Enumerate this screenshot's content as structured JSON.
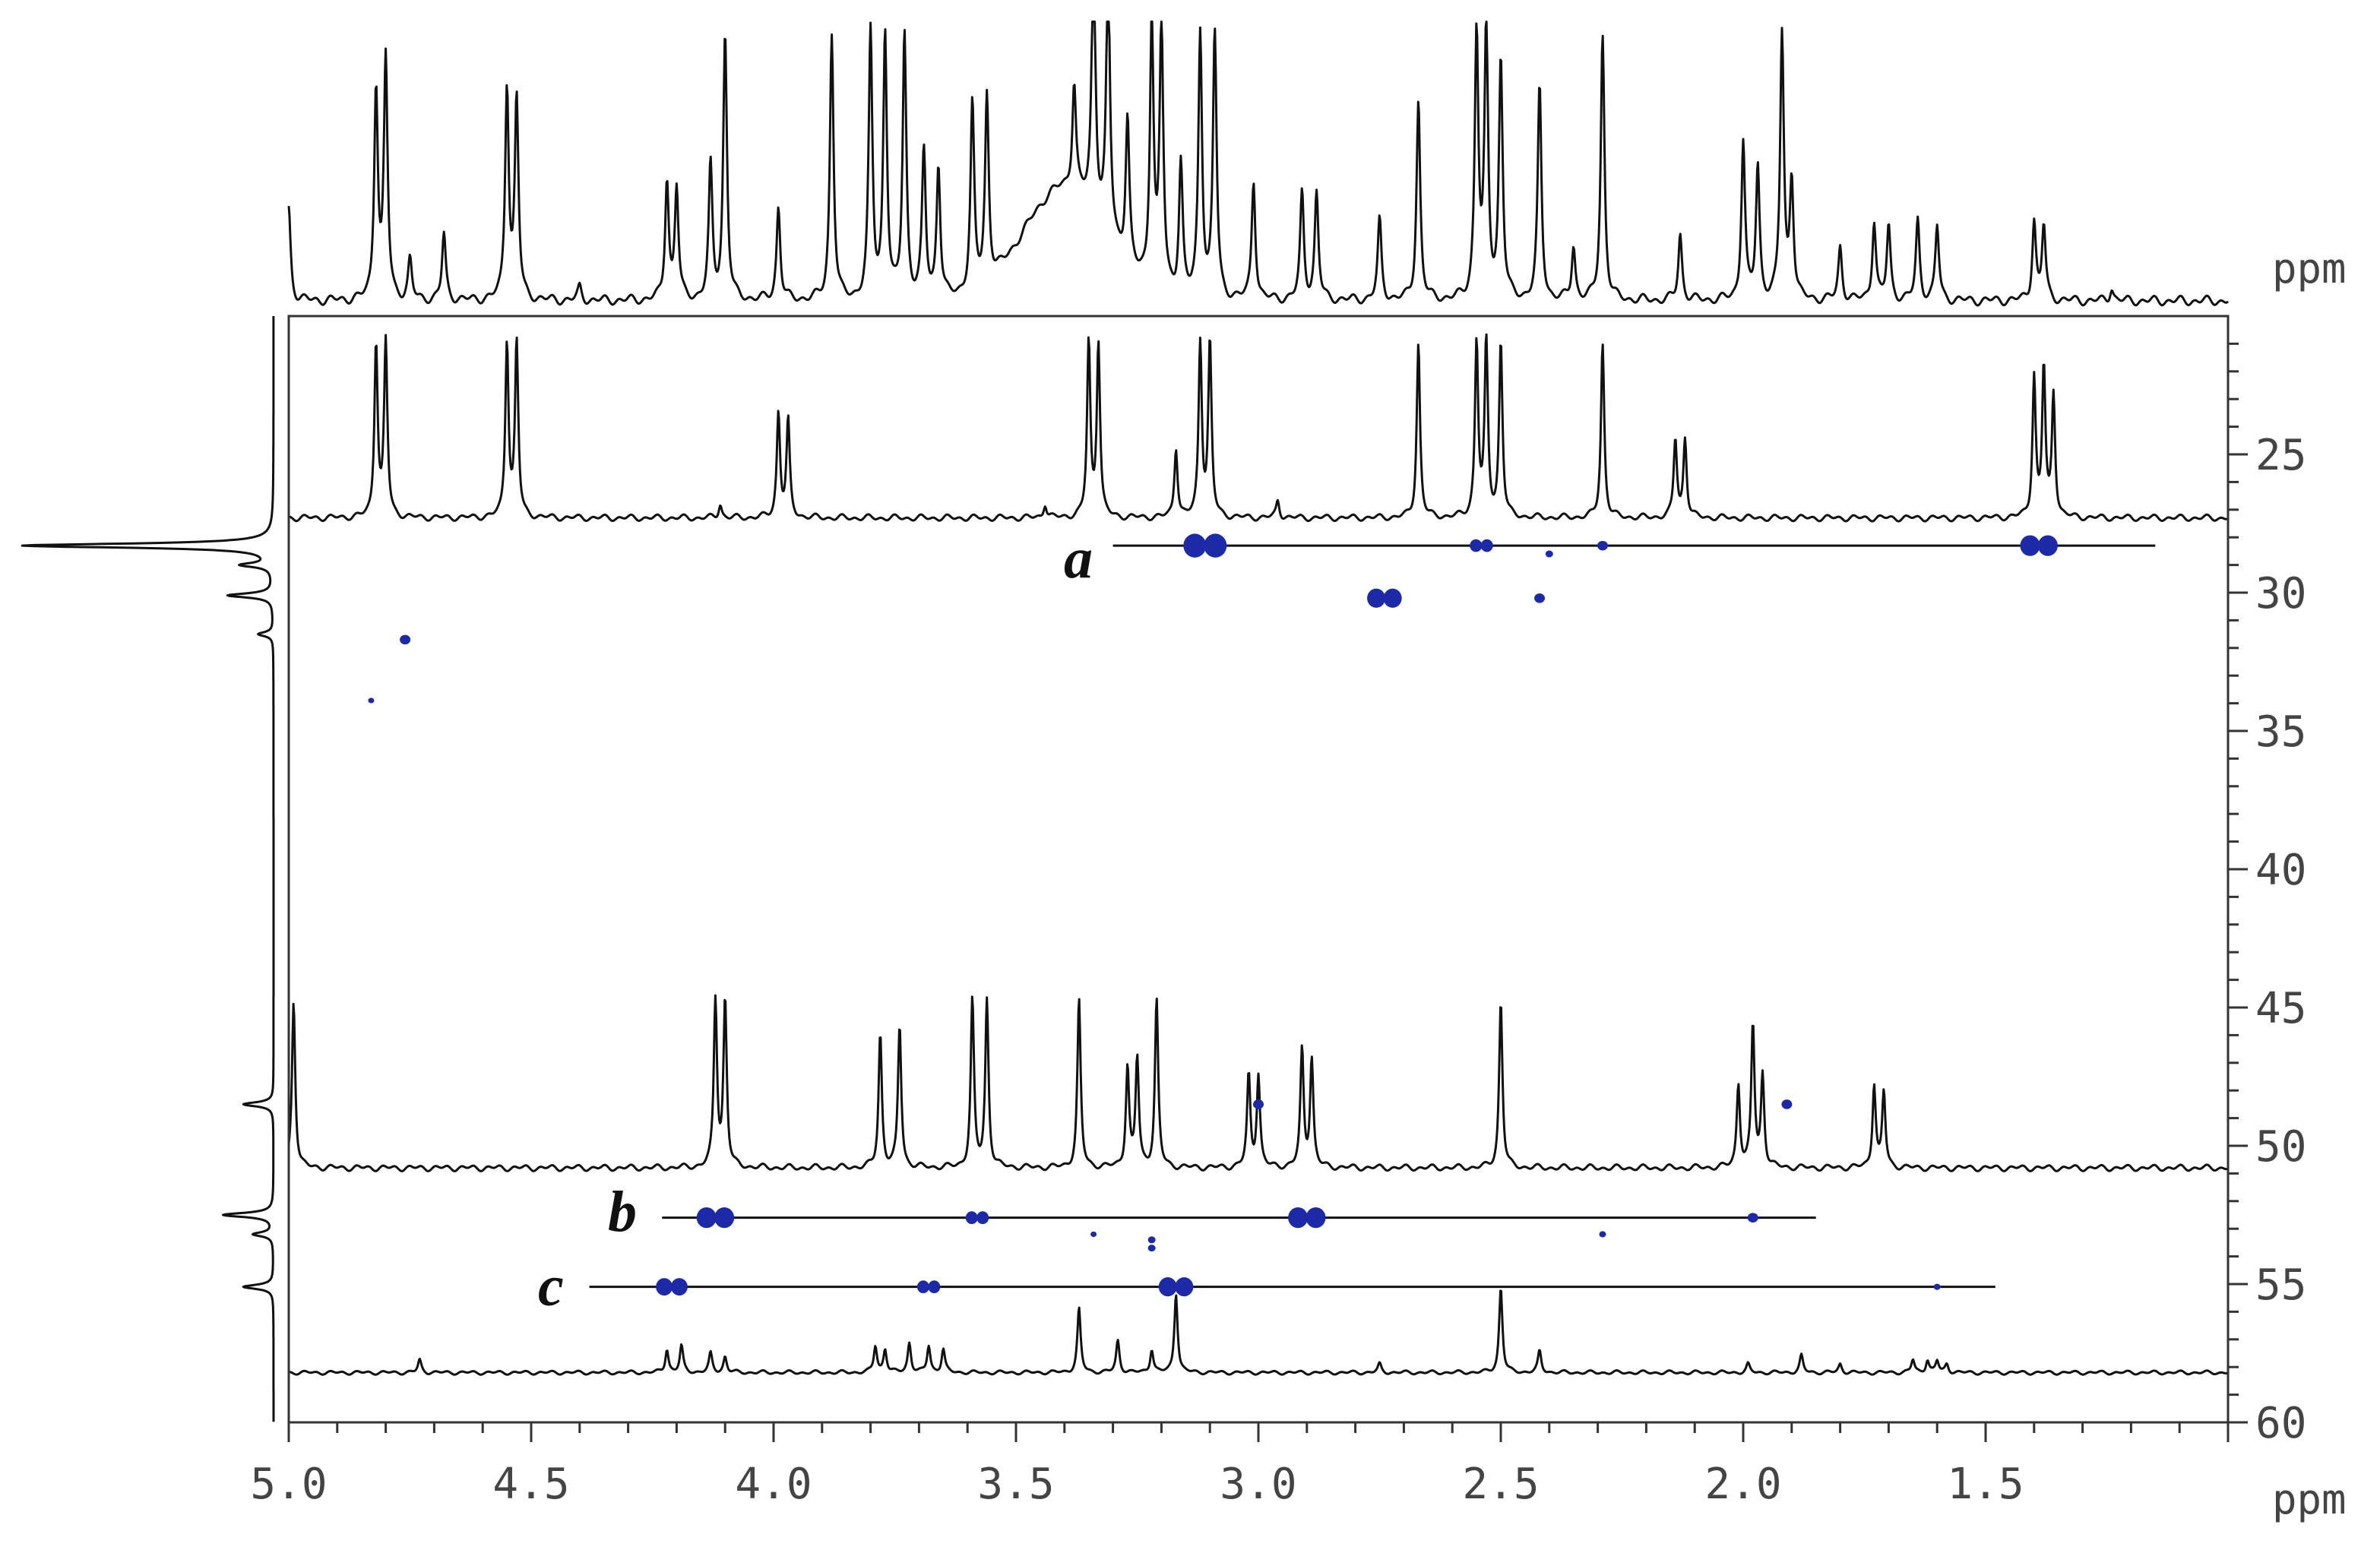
{
  "chart_data": {
    "type": "heatmap",
    "x_axis": {
      "unit": "ppm",
      "range": [
        5.0,
        1.0
      ],
      "tick_labels": [
        "5.0",
        "4.5",
        "4.0",
        "3.5",
        "3.0",
        "2.5",
        "2.0",
        "1.5"
      ]
    },
    "y_axis": {
      "unit": "ppm",
      "range": [
        20,
        60
      ],
      "tick_labels": [
        "25",
        "30",
        "35",
        "40",
        "45",
        "50",
        "55",
        "60"
      ]
    },
    "top_projection": {
      "peaks": [
        {
          "x": 5.0,
          "h": 0.35
        },
        {
          "x": 4.82,
          "h": 0.8
        },
        {
          "x": 4.8,
          "h": 0.9
        },
        {
          "x": 4.75,
          "h": 0.15
        },
        {
          "x": 4.68,
          "h": 0.25
        },
        {
          "x": 4.55,
          "h": 0.8
        },
        {
          "x": 4.53,
          "h": 0.75
        },
        {
          "x": 4.4,
          "h": 0.05
        },
        {
          "x": 4.22,
          "h": 0.45
        },
        {
          "x": 4.2,
          "h": 0.42
        },
        {
          "x": 4.13,
          "h": 0.5
        },
        {
          "x": 4.1,
          "h": 1.0
        },
        {
          "x": 3.99,
          "h": 0.35
        },
        {
          "x": 3.88,
          "h": 1.0
        },
        {
          "x": 3.8,
          "h": 1.0
        },
        {
          "x": 3.77,
          "h": 1.0
        },
        {
          "x": 3.73,
          "h": 1.0
        },
        {
          "x": 3.69,
          "h": 0.55
        },
        {
          "x": 3.66,
          "h": 0.5
        },
        {
          "x": 3.59,
          "h": 0.7
        },
        {
          "x": 3.56,
          "h": 0.7
        },
        {
          "x": 3.38,
          "h": 0.4
        },
        {
          "x": 3.34,
          "h": 1.0
        },
        {
          "x": 3.31,
          "h": 1.0
        },
        {
          "x": 3.27,
          "h": 0.55
        },
        {
          "x": 3.22,
          "h": 1.0
        },
        {
          "x": 3.2,
          "h": 1.0
        },
        {
          "x": 3.16,
          "h": 0.5
        },
        {
          "x": 3.12,
          "h": 1.0
        },
        {
          "x": 3.09,
          "h": 1.0
        },
        {
          "x": 3.01,
          "h": 0.45
        },
        {
          "x": 2.91,
          "h": 0.4
        },
        {
          "x": 2.88,
          "h": 0.4
        },
        {
          "x": 2.75,
          "h": 0.3
        },
        {
          "x": 2.67,
          "h": 0.75
        },
        {
          "x": 2.55,
          "h": 1.0
        },
        {
          "x": 2.53,
          "h": 1.0
        },
        {
          "x": 2.5,
          "h": 0.9
        },
        {
          "x": 2.42,
          "h": 0.8
        },
        {
          "x": 2.35,
          "h": 0.2
        },
        {
          "x": 2.29,
          "h": 1.0
        },
        {
          "x": 2.13,
          "h": 0.25
        },
        {
          "x": 2.0,
          "h": 0.6
        },
        {
          "x": 1.97,
          "h": 0.5
        },
        {
          "x": 1.92,
          "h": 1.0
        },
        {
          "x": 1.9,
          "h": 0.45
        },
        {
          "x": 1.8,
          "h": 0.2
        },
        {
          "x": 1.73,
          "h": 0.3
        },
        {
          "x": 1.7,
          "h": 0.28
        },
        {
          "x": 1.64,
          "h": 0.3
        },
        {
          "x": 1.6,
          "h": 0.28
        },
        {
          "x": 1.4,
          "h": 0.3
        },
        {
          "x": 1.38,
          "h": 0.28
        },
        {
          "x": 1.24,
          "h": 0.05
        }
      ],
      "humps": [
        {
          "x": 3.4,
          "h": 0.42,
          "w": 0.12
        }
      ]
    },
    "left_projection": {
      "peaks": [
        {
          "y": 28.3,
          "h": 1.0
        },
        {
          "y": 29.0,
          "h": 0.12
        },
        {
          "y": 30.1,
          "h": 0.18
        },
        {
          "y": 31.5,
          "h": 0.06
        },
        {
          "y": 48.5,
          "h": 0.12
        },
        {
          "y": 52.5,
          "h": 0.2
        },
        {
          "y": 53.2,
          "h": 0.08
        },
        {
          "y": 55.1,
          "h": 0.12
        }
      ]
    },
    "traces": [
      {
        "label": "",
        "baseline_y": 27.3,
        "peaks": [
          {
            "x": 4.82,
            "h": 1.0
          },
          {
            "x": 4.8,
            "h": 1.0
          },
          {
            "x": 4.55,
            "h": 1.0
          },
          {
            "x": 4.53,
            "h": 1.0
          },
          {
            "x": 4.11,
            "h": 0.08
          },
          {
            "x": 3.99,
            "h": 0.6
          },
          {
            "x": 3.97,
            "h": 0.55
          },
          {
            "x": 3.44,
            "h": 0.08
          },
          {
            "x": 3.35,
            "h": 1.0
          },
          {
            "x": 3.33,
            "h": 1.0
          },
          {
            "x": 3.17,
            "h": 0.4
          },
          {
            "x": 3.12,
            "h": 1.0
          },
          {
            "x": 3.1,
            "h": 1.0
          },
          {
            "x": 2.96,
            "h": 0.1
          },
          {
            "x": 2.67,
            "h": 1.0
          },
          {
            "x": 2.55,
            "h": 1.0
          },
          {
            "x": 2.53,
            "h": 1.0
          },
          {
            "x": 2.5,
            "h": 1.0
          },
          {
            "x": 2.29,
            "h": 1.0
          },
          {
            "x": 2.14,
            "h": 0.45
          },
          {
            "x": 2.12,
            "h": 0.45
          },
          {
            "x": 1.4,
            "h": 0.8
          },
          {
            "x": 1.38,
            "h": 0.85
          },
          {
            "x": 1.36,
            "h": 0.7
          }
        ]
      },
      {
        "label": "",
        "baseline_y": 50.8,
        "peaks": [
          {
            "x": 4.99,
            "h": 1.0
          },
          {
            "x": 4.12,
            "h": 1.0
          },
          {
            "x": 4.1,
            "h": 1.0
          },
          {
            "x": 3.78,
            "h": 0.8
          },
          {
            "x": 3.74,
            "h": 0.85
          },
          {
            "x": 3.59,
            "h": 1.0
          },
          {
            "x": 3.56,
            "h": 1.0
          },
          {
            "x": 3.37,
            "h": 1.0
          },
          {
            "x": 3.27,
            "h": 0.6
          },
          {
            "x": 3.25,
            "h": 0.65
          },
          {
            "x": 3.21,
            "h": 1.0
          },
          {
            "x": 3.02,
            "h": 0.55
          },
          {
            "x": 3.0,
            "h": 0.55
          },
          {
            "x": 2.91,
            "h": 0.7
          },
          {
            "x": 2.89,
            "h": 0.65
          },
          {
            "x": 2.5,
            "h": 1.0
          },
          {
            "x": 2.01,
            "h": 0.5
          },
          {
            "x": 1.98,
            "h": 0.85
          },
          {
            "x": 1.96,
            "h": 0.55
          },
          {
            "x": 1.73,
            "h": 0.5
          },
          {
            "x": 1.71,
            "h": 0.45
          }
        ]
      },
      {
        "label": "",
        "baseline_y": 58.2,
        "peaks": [
          {
            "x": 4.73,
            "h": 0.12
          },
          {
            "x": 4.22,
            "h": 0.22
          },
          {
            "x": 4.19,
            "h": 0.25
          },
          {
            "x": 4.13,
            "h": 0.18
          },
          {
            "x": 4.1,
            "h": 0.15
          },
          {
            "x": 3.79,
            "h": 0.25
          },
          {
            "x": 3.77,
            "h": 0.22
          },
          {
            "x": 3.72,
            "h": 0.28
          },
          {
            "x": 3.68,
            "h": 0.25
          },
          {
            "x": 3.65,
            "h": 0.22
          },
          {
            "x": 3.37,
            "h": 0.6
          },
          {
            "x": 3.29,
            "h": 0.3
          },
          {
            "x": 3.22,
            "h": 0.22
          },
          {
            "x": 3.17,
            "h": 0.75
          },
          {
            "x": 2.75,
            "h": 0.08
          },
          {
            "x": 2.5,
            "h": 0.8
          },
          {
            "x": 2.42,
            "h": 0.2
          },
          {
            "x": 1.99,
            "h": 0.08
          },
          {
            "x": 1.88,
            "h": 0.16
          },
          {
            "x": 1.8,
            "h": 0.08
          },
          {
            "x": 1.65,
            "h": 0.12
          },
          {
            "x": 1.62,
            "h": 0.12
          },
          {
            "x": 1.6,
            "h": 0.11
          },
          {
            "x": 1.58,
            "h": 0.08
          }
        ]
      }
    ],
    "guide_lines": [
      {
        "label": "a",
        "y": 28.3,
        "x_from": 3.3,
        "x_to": 1.15
      },
      {
        "label": "b",
        "y": 52.6,
        "x_from": 4.23,
        "x_to": 1.85
      },
      {
        "label": "c",
        "y": 55.1,
        "x_from": 4.38,
        "x_to": 1.48
      }
    ],
    "cross_peaks": [
      {
        "x": 3.11,
        "y": 28.3,
        "size": 3.0,
        "pair": true
      },
      {
        "x": 2.54,
        "y": 28.3,
        "size": 1.6,
        "pair": true
      },
      {
        "x": 2.4,
        "y": 28.6,
        "size": 1.0,
        "pair": false
      },
      {
        "x": 2.29,
        "y": 28.3,
        "size": 1.4,
        "pair": false
      },
      {
        "x": 1.39,
        "y": 28.3,
        "size": 2.6,
        "pair": true
      },
      {
        "x": 2.74,
        "y": 30.2,
        "size": 2.4,
        "pair": true
      },
      {
        "x": 2.42,
        "y": 30.2,
        "size": 1.4,
        "pair": false
      },
      {
        "x": 4.76,
        "y": 31.7,
        "size": 1.4,
        "pair": false
      },
      {
        "x": 4.83,
        "y": 33.9,
        "size": 0.8,
        "pair": false
      },
      {
        "x": 3.0,
        "y": 48.5,
        "size": 1.4,
        "pair": false
      },
      {
        "x": 1.91,
        "y": 48.5,
        "size": 1.4,
        "pair": false
      },
      {
        "x": 4.12,
        "y": 52.6,
        "size": 2.6,
        "pair": true
      },
      {
        "x": 3.58,
        "y": 52.6,
        "size": 1.6,
        "pair": true
      },
      {
        "x": 3.34,
        "y": 53.2,
        "size": 0.8,
        "pair": false
      },
      {
        "x": 3.22,
        "y": 53.4,
        "size": 1.0,
        "pair": false
      },
      {
        "x": 3.22,
        "y": 53.7,
        "size": 1.0,
        "pair": false
      },
      {
        "x": 2.9,
        "y": 52.6,
        "size": 2.6,
        "pair": true
      },
      {
        "x": 2.29,
        "y": 53.2,
        "size": 0.9,
        "pair": false
      },
      {
        "x": 1.98,
        "y": 52.6,
        "size": 1.4,
        "pair": false
      },
      {
        "x": 4.21,
        "y": 55.1,
        "size": 2.2,
        "pair": true
      },
      {
        "x": 3.68,
        "y": 55.1,
        "size": 1.6,
        "pair": true
      },
      {
        "x": 3.17,
        "y": 55.1,
        "size": 2.4,
        "pair": true
      },
      {
        "x": 1.6,
        "y": 55.1,
        "size": 0.9,
        "pair": false
      }
    ],
    "trace_labels": [
      "a",
      "b",
      "c"
    ],
    "unit_label": "ppm",
    "grid": false,
    "legend": "none"
  }
}
